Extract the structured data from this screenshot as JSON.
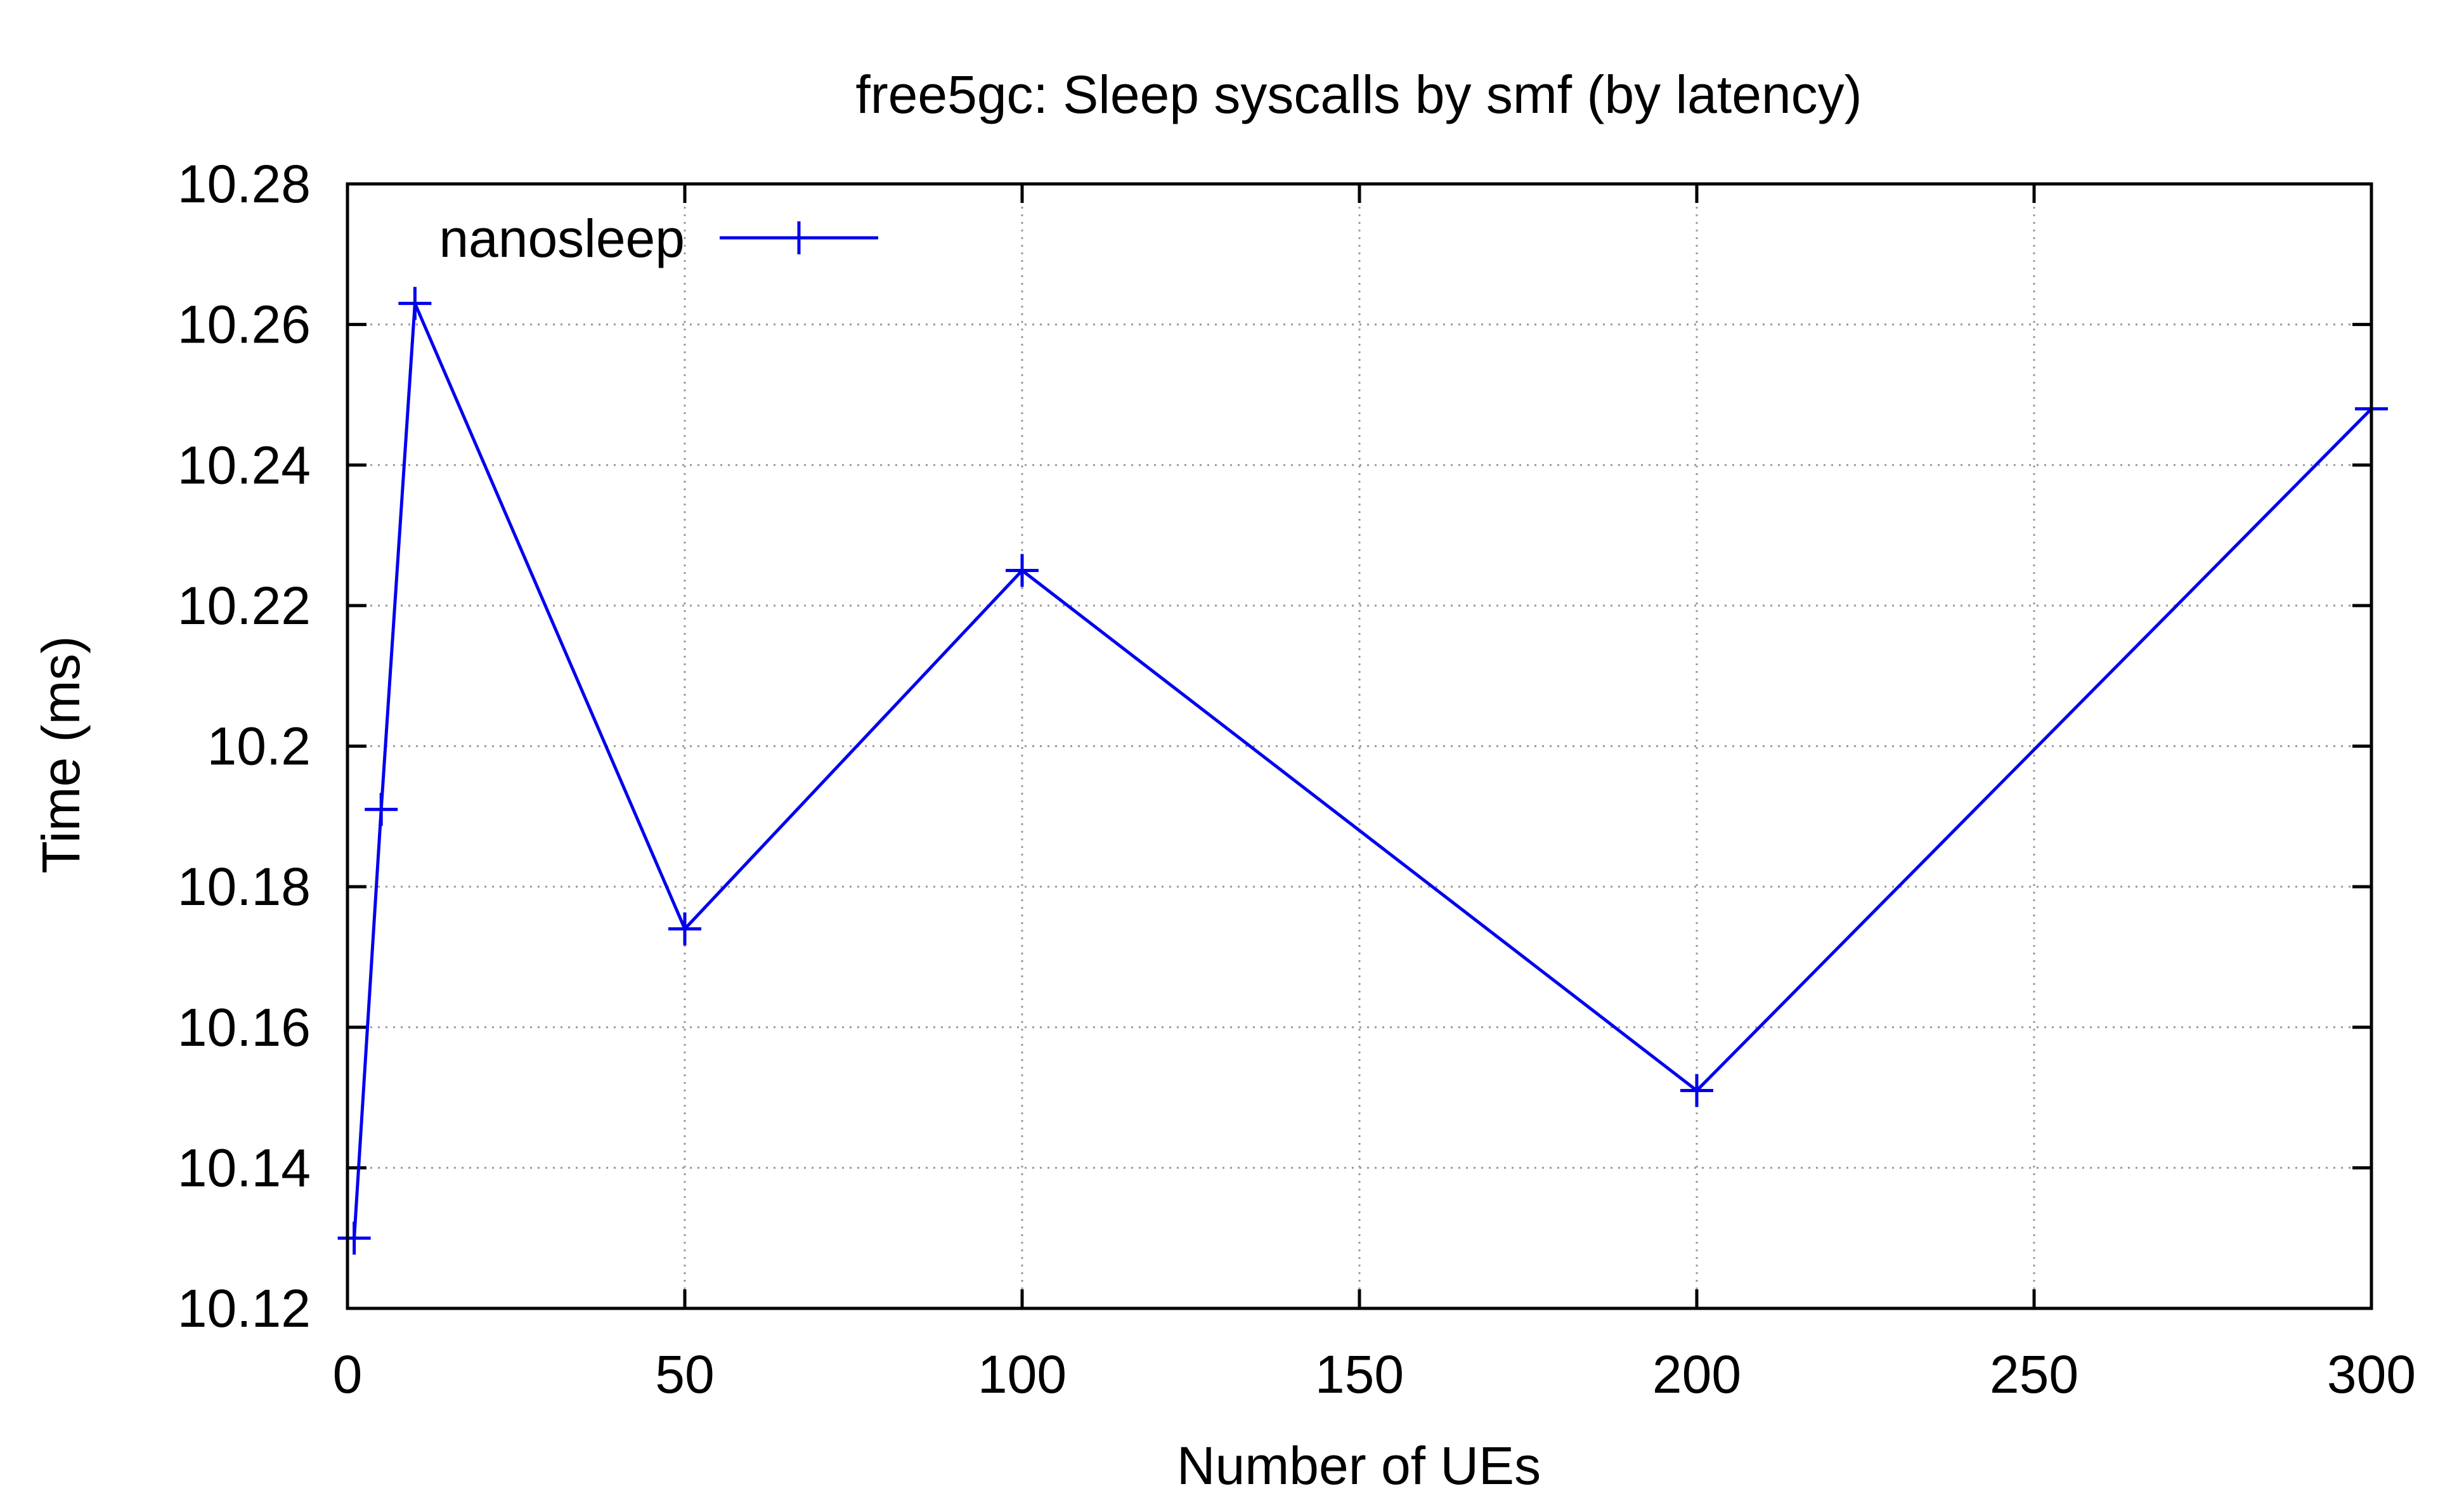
{
  "chart_data": {
    "type": "line",
    "title": "free5gc: Sleep syscalls by smf (by latency)",
    "xlabel": "Number of UEs",
    "ylabel": "Time (ms)",
    "xlim": [
      0,
      300
    ],
    "ylim": [
      10.12,
      10.28
    ],
    "xticks": [
      0,
      50,
      100,
      150,
      200,
      250,
      300
    ],
    "yticks": [
      10.12,
      10.14,
      10.16,
      10.18,
      10.2,
      10.22,
      10.24,
      10.26,
      10.28
    ],
    "xtick_labels": [
      "0",
      "50",
      "100",
      "150",
      "200",
      "250",
      "300"
    ],
    "ytick_labels": [
      "10.12",
      "10.14",
      "10.16",
      "10.18",
      "10.2",
      "10.22",
      "10.24",
      "10.26",
      "10.28"
    ],
    "grid": true,
    "legend_position": "top-left",
    "series": [
      {
        "name": "nanosleep",
        "color": "#0000ee",
        "marker": "plus",
        "x": [
          1,
          5,
          10,
          50,
          100,
          200,
          300
        ],
        "y": [
          10.13,
          10.191,
          10.263,
          10.174,
          10.225,
          10.151,
          10.248
        ]
      }
    ]
  }
}
